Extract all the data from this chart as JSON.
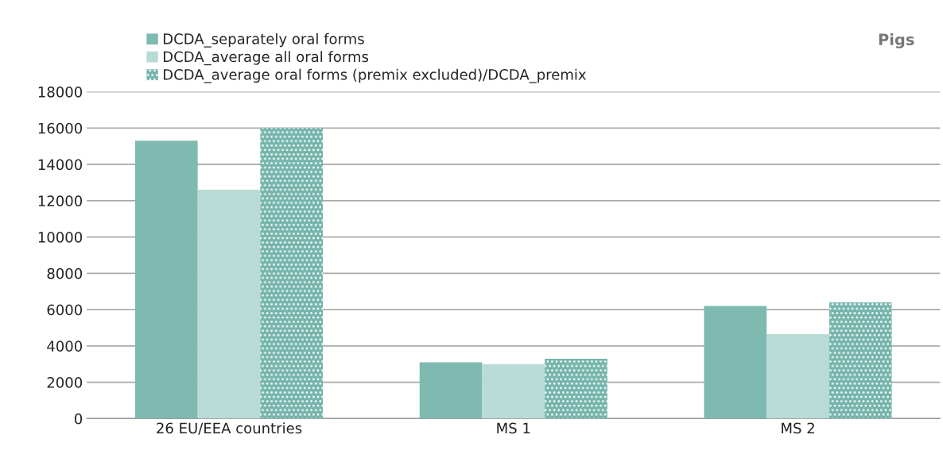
{
  "chart_data": {
    "type": "bar",
    "title": "Pigs",
    "categories": [
      "26 EU/EEA countries",
      "MS 1",
      "MS 2"
    ],
    "series": [
      {
        "name": "DCDA_separately oral forms",
        "color": "#7fbab1",
        "values": [
          15300,
          3100,
          6200
        ]
      },
      {
        "name": "DCDA_average all oral forms",
        "color": "#b9dbd5",
        "values": [
          12600,
          3000,
          4650
        ]
      },
      {
        "name": "DCDA_average oral forms (premix excluded)/DCDA_premix",
        "color": "#75b5ab",
        "values": [
          16000,
          3300,
          6400
        ]
      }
    ],
    "ylim": [
      0,
      18000
    ],
    "yticks": [
      0,
      2000,
      4000,
      6000,
      8000,
      10000,
      12000,
      14000,
      16000,
      18000
    ],
    "grid": "y",
    "legend": "top left"
  }
}
